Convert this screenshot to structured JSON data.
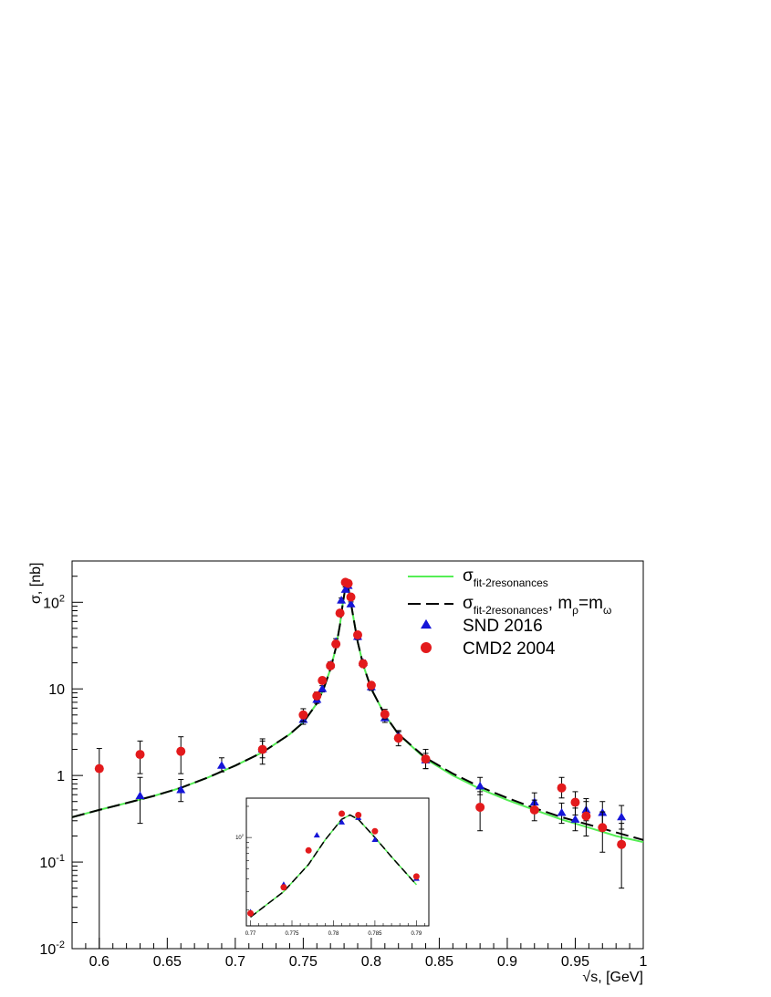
{
  "chart_data": {
    "type": "scatter",
    "ylabel": "σ, [nb]",
    "xlabel": "√s, [GeV]",
    "xlim": [
      0.58,
      1.0
    ],
    "ylim": [
      0.01,
      300
    ],
    "yscale": "log",
    "xticks": [
      "0.6",
      "0.65",
      "0.7",
      "0.75",
      "0.8",
      "0.85",
      "0.9",
      "0.95",
      "1"
    ],
    "yticks": [
      {
        "value": 0.01,
        "base": "10",
        "exp": "-2"
      },
      {
        "value": 0.1,
        "base": "10",
        "exp": "-1"
      },
      {
        "value": 1,
        "base": "1",
        "exp": ""
      },
      {
        "value": 10,
        "base": "10",
        "exp": ""
      },
      {
        "value": 100,
        "base": "10",
        "exp": "2"
      }
    ],
    "legend_position": "top-right",
    "legend": [
      {
        "base": "σ",
        "sub": "fit-2resonances",
        "tail": "",
        "color": "#55ee55",
        "style": "solid"
      },
      {
        "base": "σ",
        "sub": "fit-2resonances",
        "tail": ", m",
        "sub2": "ρ",
        "tail2": "=m",
        "sub3": "ω",
        "color": "#000000",
        "style": "dashed"
      },
      {
        "label": "SND 2016",
        "color": "#1515d8",
        "marker": "triangle"
      },
      {
        "label": "CMD2 2004",
        "color": "#e31a1c",
        "marker": "circle"
      }
    ],
    "series": [
      {
        "name": "SND 2016",
        "marker": "triangle",
        "color": "#1515d8",
        "points": [
          {
            "x": 0.63,
            "y": 0.58,
            "lo": 0.28,
            "hi": 0.95
          },
          {
            "x": 0.66,
            "y": 0.68,
            "lo": 0.5,
            "hi": 0.9
          },
          {
            "x": 0.69,
            "y": 1.3,
            "lo": 1.1,
            "hi": 1.6
          },
          {
            "x": 0.72,
            "y": 2.0,
            "lo": 1.6,
            "hi": 2.5
          },
          {
            "x": 0.75,
            "y": 4.4,
            "lo": 3.9,
            "hi": 5.0
          },
          {
            "x": 0.76,
            "y": 7.5,
            "lo": 6.8,
            "hi": 8.3
          },
          {
            "x": 0.764,
            "y": 10.0,
            "lo": 9.2,
            "hi": 10.9
          },
          {
            "x": 0.77,
            "y": 19.0,
            "lo": 17.5,
            "hi": 20.5
          },
          {
            "x": 0.774,
            "y": 35.0,
            "lo": 32.0,
            "hi": 38.0
          },
          {
            "x": 0.778,
            "y": 105.0,
            "lo": 98.0,
            "hi": 112.0
          },
          {
            "x": 0.781,
            "y": 140.0,
            "lo": 132.0,
            "hi": 150.0
          },
          {
            "x": 0.783,
            "y": 155.0,
            "lo": 146.0,
            "hi": 165.0
          },
          {
            "x": 0.785,
            "y": 95.0,
            "lo": 89.0,
            "hi": 101.0
          },
          {
            "x": 0.79,
            "y": 40.0,
            "lo": 37.0,
            "hi": 43.0
          },
          {
            "x": 0.794,
            "y": 20.0,
            "lo": 18.5,
            "hi": 21.5
          },
          {
            "x": 0.8,
            "y": 10.5,
            "lo": 9.6,
            "hi": 11.5
          },
          {
            "x": 0.81,
            "y": 4.6,
            "lo": 4.1,
            "hi": 5.2
          },
          {
            "x": 0.82,
            "y": 2.9,
            "lo": 2.5,
            "hi": 3.3
          },
          {
            "x": 0.84,
            "y": 1.5,
            "lo": 1.2,
            "hi": 1.8
          },
          {
            "x": 0.88,
            "y": 0.75,
            "lo": 0.6,
            "hi": 0.95
          },
          {
            "x": 0.92,
            "y": 0.49,
            "lo": 0.38,
            "hi": 0.63
          },
          {
            "x": 0.94,
            "y": 0.37,
            "lo": 0.28,
            "hi": 0.48
          },
          {
            "x": 0.95,
            "y": 0.31,
            "lo": 0.23,
            "hi": 0.42
          },
          {
            "x": 0.958,
            "y": 0.4,
            "lo": 0.3,
            "hi": 0.54
          },
          {
            "x": 0.97,
            "y": 0.37,
            "lo": 0.27,
            "hi": 0.5
          },
          {
            "x": 0.984,
            "y": 0.33,
            "lo": 0.24,
            "hi": 0.45
          }
        ]
      },
      {
        "name": "CMD2 2004",
        "marker": "circle",
        "color": "#e31a1c",
        "points": [
          {
            "x": 0.6,
            "y": 1.2,
            "lo": 0.008,
            "hi": 2.05
          },
          {
            "x": 0.63,
            "y": 1.75,
            "lo": 1.05,
            "hi": 2.5
          },
          {
            "x": 0.66,
            "y": 1.9,
            "lo": 1.05,
            "hi": 2.8
          },
          {
            "x": 0.72,
            "y": 2.0,
            "lo": 1.35,
            "hi": 2.65
          },
          {
            "x": 0.75,
            "y": 5.0,
            "lo": 4.2,
            "hi": 5.9
          },
          {
            "x": 0.76,
            "y": 8.3,
            "lo": 7.5,
            "hi": 9.2
          },
          {
            "x": 0.764,
            "y": 12.5,
            "lo": 11.5,
            "hi": 13.6
          },
          {
            "x": 0.77,
            "y": 18.5,
            "lo": 17.0,
            "hi": 20.0
          },
          {
            "x": 0.774,
            "y": 33.0,
            "lo": 30.0,
            "hi": 36.0
          },
          {
            "x": 0.777,
            "y": 75.0,
            "lo": 70.0,
            "hi": 80.0
          },
          {
            "x": 0.781,
            "y": 170.0,
            "lo": 160.0,
            "hi": 180.0
          },
          {
            "x": 0.783,
            "y": 165.0,
            "lo": 155.0,
            "hi": 175.0
          },
          {
            "x": 0.785,
            "y": 115.0,
            "lo": 108.0,
            "hi": 122.0
          },
          {
            "x": 0.79,
            "y": 42.0,
            "lo": 39.0,
            "hi": 45.0
          },
          {
            "x": 0.794,
            "y": 19.5,
            "lo": 18.0,
            "hi": 21.0
          },
          {
            "x": 0.8,
            "y": 11.0,
            "lo": 10.0,
            "hi": 12.0
          },
          {
            "x": 0.81,
            "y": 5.1,
            "lo": 4.5,
            "hi": 5.8
          },
          {
            "x": 0.82,
            "y": 2.7,
            "lo": 2.2,
            "hi": 3.2
          },
          {
            "x": 0.84,
            "y": 1.55,
            "lo": 1.2,
            "hi": 2.0
          },
          {
            "x": 0.88,
            "y": 0.43,
            "lo": 0.23,
            "hi": 0.65
          },
          {
            "x": 0.92,
            "y": 0.4,
            "lo": 0.3,
            "hi": 0.52
          },
          {
            "x": 0.94,
            "y": 0.72,
            "lo": 0.55,
            "hi": 0.95
          },
          {
            "x": 0.95,
            "y": 0.49,
            "lo": 0.35,
            "hi": 0.65
          },
          {
            "x": 0.958,
            "y": 0.34,
            "lo": 0.2,
            "hi": 0.5
          },
          {
            "x": 0.97,
            "y": 0.25,
            "lo": 0.13,
            "hi": 0.38
          },
          {
            "x": 0.984,
            "y": 0.16,
            "lo": 0.05,
            "hi": 0.28
          }
        ]
      }
    ],
    "fit_curves": [
      {
        "name": "σ fit-2resonances",
        "color": "#55ee55",
        "style": "solid",
        "x": [
          0.58,
          0.6,
          0.62,
          0.64,
          0.66,
          0.68,
          0.7,
          0.72,
          0.74,
          0.75,
          0.76,
          0.765,
          0.77,
          0.774,
          0.777,
          0.779,
          0.781,
          0.782,
          0.783,
          0.785,
          0.787,
          0.79,
          0.794,
          0.8,
          0.81,
          0.82,
          0.84,
          0.86,
          0.88,
          0.9,
          0.92,
          0.94,
          0.96,
          0.98,
          1.0
        ],
        "y": [
          0.33,
          0.4,
          0.48,
          0.58,
          0.72,
          0.95,
          1.3,
          1.85,
          3.0,
          4.1,
          6.8,
          10.0,
          17.0,
          30.0,
          55.0,
          95.0,
          150.0,
          165.0,
          150.0,
          100.0,
          65.0,
          35.0,
          19.0,
          10.0,
          5.0,
          3.0,
          1.55,
          1.0,
          0.7,
          0.52,
          0.4,
          0.31,
          0.25,
          0.2,
          0.17
        ]
      },
      {
        "name": "σ fit-2resonances, mρ=mω",
        "color": "#000000",
        "style": "dashed",
        "x": [
          0.58,
          0.6,
          0.62,
          0.64,
          0.66,
          0.68,
          0.7,
          0.72,
          0.74,
          0.75,
          0.76,
          0.765,
          0.77,
          0.774,
          0.777,
          0.779,
          0.781,
          0.782,
          0.783,
          0.785,
          0.787,
          0.79,
          0.794,
          0.8,
          0.81,
          0.82,
          0.84,
          0.86,
          0.88,
          0.9,
          0.92,
          0.94,
          0.96,
          0.98,
          1.0
        ],
        "y": [
          0.33,
          0.4,
          0.48,
          0.58,
          0.72,
          0.95,
          1.3,
          1.85,
          3.0,
          4.1,
          6.8,
          10.0,
          17.0,
          30.0,
          55.0,
          95.0,
          150.0,
          165.0,
          150.0,
          100.0,
          65.0,
          35.0,
          19.0,
          10.0,
          5.0,
          3.0,
          1.6,
          1.05,
          0.74,
          0.55,
          0.42,
          0.33,
          0.27,
          0.22,
          0.18
        ]
      }
    ],
    "inset": {
      "xlim": [
        0.7695,
        0.7915
      ],
      "xticks": [
        "0.77",
        "0.775",
        "0.78",
        "0.785",
        "0.79"
      ],
      "ytick": {
        "base": "10",
        "exp": "2"
      }
    }
  }
}
